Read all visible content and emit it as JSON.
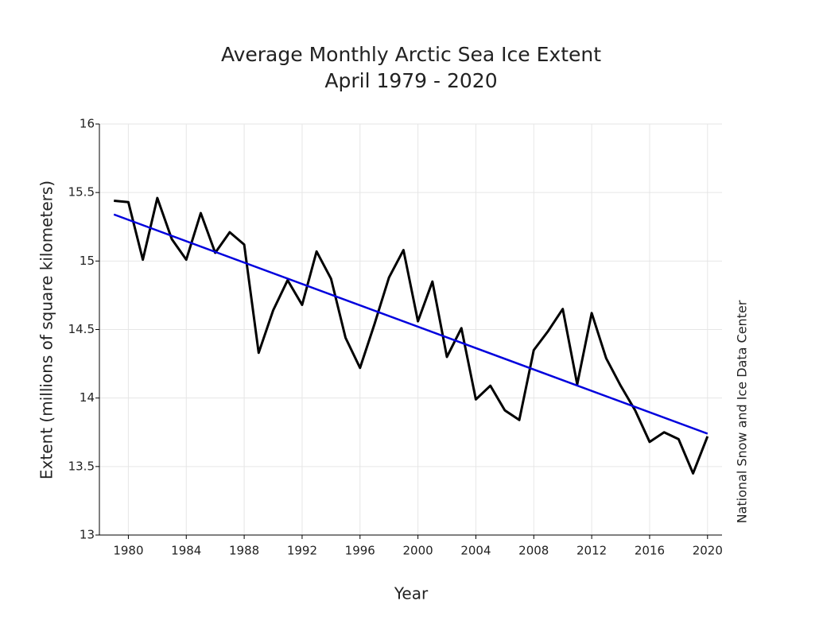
{
  "chart_data": {
    "type": "line",
    "title": "Average Monthly Arctic Sea Ice Extent",
    "subtitle": "April 1979 - 2020",
    "x_label": "Year",
    "y_label": "Extent (millions of square kilometers)",
    "annotation": "National Snow and Ice Data Center",
    "x": [
      1979,
      1980,
      1981,
      1982,
      1983,
      1984,
      1985,
      1986,
      1987,
      1988,
      1989,
      1990,
      1991,
      1992,
      1993,
      1994,
      1995,
      1996,
      1997,
      1998,
      1999,
      2000,
      2001,
      2002,
      2003,
      2004,
      2005,
      2006,
      2007,
      2008,
      2009,
      2010,
      2011,
      2012,
      2013,
      2014,
      2015,
      2016,
      2017,
      2018,
      2019,
      2020
    ],
    "series": [
      {
        "color": "#000000",
        "values": [
          15.44,
          15.43,
          15.01,
          15.46,
          15.16,
          15.01,
          15.35,
          15.06,
          15.21,
          15.12,
          14.33,
          14.64,
          14.86,
          14.68,
          15.07,
          14.87,
          14.44,
          14.22,
          14.54,
          14.88,
          15.08,
          14.56,
          14.85,
          14.3,
          14.51,
          13.99,
          14.09,
          13.91,
          13.84,
          14.35,
          14.49,
          14.65,
          14.1,
          14.62,
          14.29,
          14.09,
          13.91,
          13.68,
          13.75,
          13.7,
          13.45,
          13.72
        ]
      },
      {
        "color": "#0000dd",
        "values": [
          15.34,
          null,
          null,
          null,
          null,
          null,
          null,
          null,
          null,
          null,
          null,
          null,
          null,
          null,
          null,
          null,
          null,
          null,
          null,
          null,
          null,
          null,
          null,
          null,
          null,
          null,
          null,
          null,
          null,
          null,
          null,
          null,
          null,
          null,
          null,
          null,
          null,
          null,
          null,
          null,
          null,
          13.74
        ]
      }
    ],
    "xlim": [
      1978,
      2021
    ],
    "xticks": [
      1980,
      1984,
      1988,
      1992,
      1996,
      2000,
      2004,
      2008,
      2012,
      2016,
      2020
    ],
    "ylim": [
      13,
      16
    ],
    "yticks": [
      13,
      13.5,
      14,
      14.5,
      15,
      15.5,
      16
    ],
    "grid": true
  }
}
